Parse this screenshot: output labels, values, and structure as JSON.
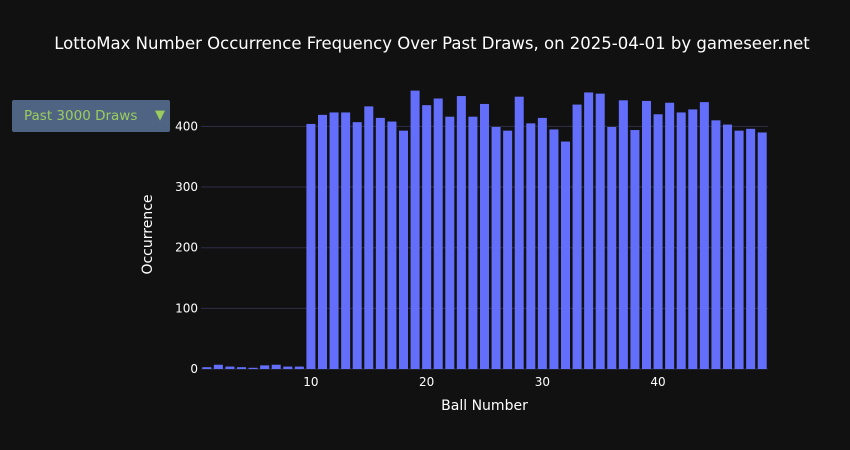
{
  "title": "LottoMax Number Occurrence Frequency Over Past Draws, on 2025-04-01 by gameseer.net",
  "dropdown": {
    "label": "Past 3000 Draws",
    "arrow": "▼"
  },
  "colors": {
    "background": "#111111",
    "bar": "#636efa",
    "dropdown_bg": "#4f6483",
    "dropdown_text": "#9ccc5e",
    "grid": "#2e2e48"
  },
  "chart_data": {
    "type": "bar",
    "title": "LottoMax Number Occurrence Frequency Over Past Draws, on 2025-04-01 by gameseer.net",
    "xlabel": "Ball Number",
    "ylabel": "Occurrence",
    "x_ticks": [
      10,
      20,
      30,
      40
    ],
    "y_ticks": [
      0,
      100,
      200,
      300,
      400
    ],
    "xlim": [
      0.5,
      49.5
    ],
    "ylim": [
      0,
      460
    ],
    "grid": true,
    "categories": [
      1,
      2,
      3,
      4,
      5,
      6,
      7,
      8,
      9,
      10,
      11,
      12,
      13,
      14,
      15,
      16,
      17,
      18,
      19,
      20,
      21,
      22,
      23,
      24,
      25,
      26,
      27,
      28,
      29,
      30,
      31,
      32,
      33,
      34,
      35,
      36,
      37,
      38,
      39,
      40,
      41,
      42,
      43,
      44,
      45,
      46,
      47,
      48,
      49
    ],
    "values": [
      3,
      7,
      4,
      3,
      2,
      6,
      7,
      4,
      4,
      404,
      419,
      423,
      423,
      407,
      433,
      414,
      408,
      393,
      459,
      435,
      446,
      416,
      450,
      416,
      437,
      399,
      393,
      449,
      405,
      414,
      395,
      375,
      436,
      456,
      454,
      399,
      443,
      394,
      442,
      420,
      439,
      423,
      428,
      440,
      410,
      403,
      393,
      396,
      390
    ]
  }
}
